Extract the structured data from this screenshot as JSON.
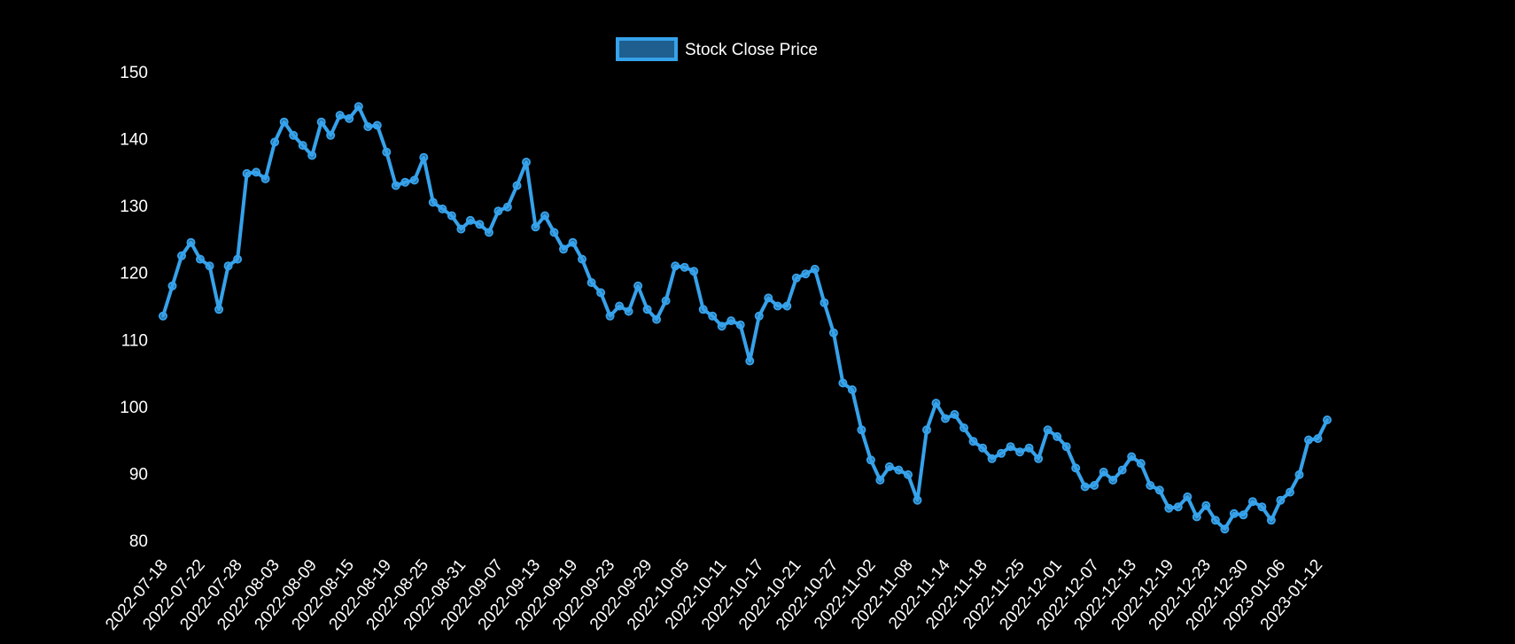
{
  "chart_data": {
    "type": "line",
    "legend": {
      "label": "Stock Close Price",
      "position": "top"
    },
    "colors": {
      "background": "#000000",
      "line": "#36a2eb",
      "legend_fill": "#1f5f8f",
      "text": "#ffffff"
    },
    "grid": false,
    "ylim": [
      80,
      150
    ],
    "yticks": [
      80,
      90,
      100,
      110,
      120,
      130,
      140,
      150
    ],
    "xtick_labels": [
      "2022-07-18",
      "2022-07-22",
      "2022-07-28",
      "2022-08-03",
      "2022-08-09",
      "2022-08-15",
      "2022-08-19",
      "2022-08-25",
      "2022-08-31",
      "2022-09-07",
      "2022-09-13",
      "2022-09-19",
      "2022-09-23",
      "2022-09-29",
      "2022-10-05",
      "2022-10-11",
      "2022-10-17",
      "2022-10-21",
      "2022-10-27",
      "2022-11-02",
      "2022-11-08",
      "2022-11-14",
      "2022-11-18",
      "2022-11-25",
      "2022-12-01",
      "2022-12-07",
      "2022-12-13",
      "2022-12-19",
      "2022-12-23",
      "2022-12-30",
      "2023-01-06",
      "2023-01-12"
    ],
    "values": [
      113.5,
      118,
      122.5,
      124.5,
      122,
      121,
      114.5,
      121,
      122,
      134.8,
      135,
      134,
      139.5,
      142.5,
      140.5,
      139,
      137.5,
      142.5,
      140.5,
      143.5,
      143,
      144.8,
      141.8,
      142,
      138,
      133,
      133.5,
      133.8,
      137.2,
      130.5,
      129.5,
      128.5,
      126.5,
      127.8,
      127.2,
      126,
      129.2,
      129.8,
      133,
      136.5,
      126.8,
      128.5,
      126,
      123.5,
      124.5,
      122,
      118.5,
      117,
      113.5,
      115,
      114.2,
      118,
      114.5,
      113,
      115.8,
      121,
      120.8,
      120.2,
      114.5,
      113.5,
      112,
      112.8,
      112.2,
      106.8,
      113.5,
      116.2,
      115,
      115,
      119.2,
      119.8,
      120.5,
      115.5,
      111,
      103.5,
      102.5,
      96.5,
      92,
      89,
      91,
      90.5,
      89.8,
      86,
      96.5,
      100.5,
      98.2,
      98.8,
      96.8,
      94.8,
      93.8,
      92.2,
      93,
      94,
      93.2,
      93.8,
      92.2,
      96.5,
      95.5,
      94,
      90.8,
      88,
      88.2,
      90.2,
      89,
      90.5,
      92.5,
      91.5,
      88.2,
      87.5,
      84.8,
      85,
      86.5,
      83.5,
      85.2,
      83,
      81.7,
      84,
      83.8,
      85.8,
      85,
      83,
      86,
      87.2,
      89.8,
      95,
      95.2,
      98
    ]
  }
}
